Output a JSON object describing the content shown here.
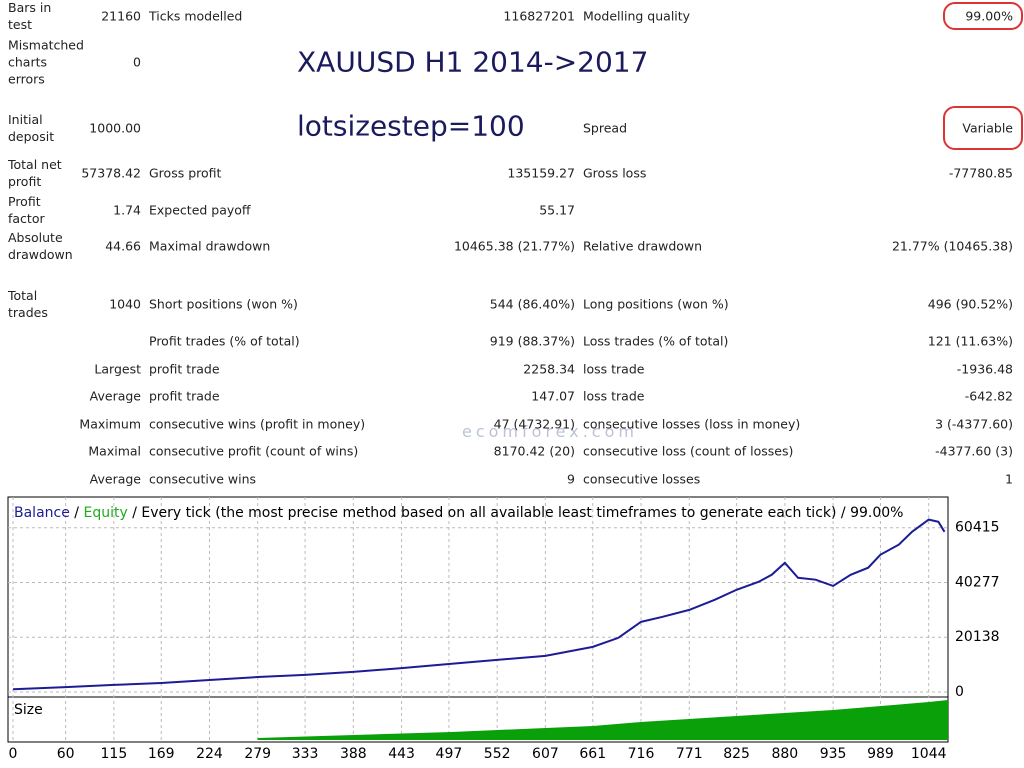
{
  "report": {
    "rows": [
      {
        "l1": "Bars in test",
        "v1": "21160",
        "l2": "Ticks modelled",
        "v2": "116827201",
        "l3": "Modelling quality",
        "v3": "99.00%",
        "circled": true
      },
      {
        "l1": "Mismatched charts errors",
        "v1": "0"
      },
      {
        "l1": "Initial deposit",
        "v1": "1000.00",
        "l3": "Spread",
        "v3": "Variable",
        "circled": true
      },
      {
        "l1": "Total net profit",
        "v1": "57378.42",
        "l2": "Gross profit",
        "v2": "135159.27",
        "l3": "Gross loss",
        "v3": "-77780.85"
      },
      {
        "l1": "Profit factor",
        "v1": "1.74",
        "l2": "Expected payoff",
        "v2": "55.17"
      },
      {
        "l1": "Absolute drawdown",
        "v1": "44.66",
        "l2": "Maximal drawdown",
        "v2": "10465.38 (21.77%)",
        "l3": "Relative drawdown",
        "v3": "21.77% (10465.38)"
      },
      {
        "l1": "Total trades",
        "v1": "1040",
        "l2": "Short positions (won %)",
        "v2": "544 (86.40%)",
        "l3": "Long positions (won %)",
        "v3": "496 (90.52%)"
      },
      {
        "l2": "Profit trades (% of total)",
        "v2": "919 (88.37%)",
        "l3": "Loss trades (% of total)",
        "v3": "121 (11.63%)"
      },
      {
        "lead": "Largest",
        "l2": "profit trade",
        "v2": "2258.34",
        "l3": "loss trade",
        "v3": "-1936.48"
      },
      {
        "lead": "Average",
        "l2": "profit trade",
        "v2": "147.07",
        "l3": "loss trade",
        "v3": "-642.82"
      },
      {
        "lead": "Maximum",
        "l2": "consecutive wins (profit in money)",
        "v2": "47 (4732.91)",
        "l3": "consecutive losses (loss in money)",
        "v3": "3 (-4377.60)"
      },
      {
        "lead": "Maximal",
        "l2": "consecutive profit (count of wins)",
        "v2": "8170.42 (20)",
        "l3": "consecutive loss (count of losses)",
        "v3": "-4377.60 (3)"
      },
      {
        "lead": "Average",
        "l2": "consecutive wins",
        "v2": "9",
        "l3": "consecutive losses",
        "v3": "1"
      }
    ],
    "overlay": [
      "XAUUSD H1 2014->2017",
      "lotsizestep=100"
    ],
    "watermark": "ecomforex.com"
  },
  "chart": {
    "type": "line",
    "legend_separator": "/",
    "subtitle": "/ Every tick (the most precise method based on all available least timeframes to generate each tick) / 99.00%",
    "xlim": [
      0,
      1066
    ],
    "ylim": [
      0,
      69500
    ],
    "yticks": [
      0,
      20138,
      40277,
      60415
    ],
    "xticks": [
      0,
      60,
      115,
      169,
      224,
      279,
      333,
      388,
      443,
      497,
      552,
      607,
      661,
      716,
      771,
      825,
      880,
      935,
      989,
      1044
    ],
    "grid": true,
    "x": [
      0,
      60,
      115,
      169,
      224,
      279,
      333,
      388,
      443,
      497,
      552,
      607,
      661,
      690,
      716,
      740,
      771,
      800,
      825,
      850,
      865,
      880,
      895,
      915,
      935,
      955,
      975,
      989,
      1010,
      1025,
      1044,
      1055,
      1062
    ],
    "series": [
      {
        "name": "Balance",
        "color": "#1c1c96",
        "values": [
          1000,
          1800,
          2600,
          3300,
          4400,
          5500,
          6300,
          7400,
          8800,
          10300,
          11800,
          13300,
          16600,
          19900,
          25800,
          27600,
          30200,
          33900,
          37600,
          40500,
          43100,
          47500,
          42000,
          41300,
          39000,
          43100,
          45700,
          50500,
          54200,
          58900,
          63400,
          62600,
          58900
        ]
      },
      {
        "name": "Equity",
        "color": "#22aa22"
      }
    ],
    "size": {
      "label": "Size",
      "color": "#0aa00a",
      "x": [
        279,
        500,
        661,
        716,
        825,
        935,
        1044,
        1066
      ],
      "values": [
        2,
        8,
        14,
        18,
        24,
        30,
        38,
        40
      ],
      "ylim": [
        0,
        42
      ]
    }
  }
}
